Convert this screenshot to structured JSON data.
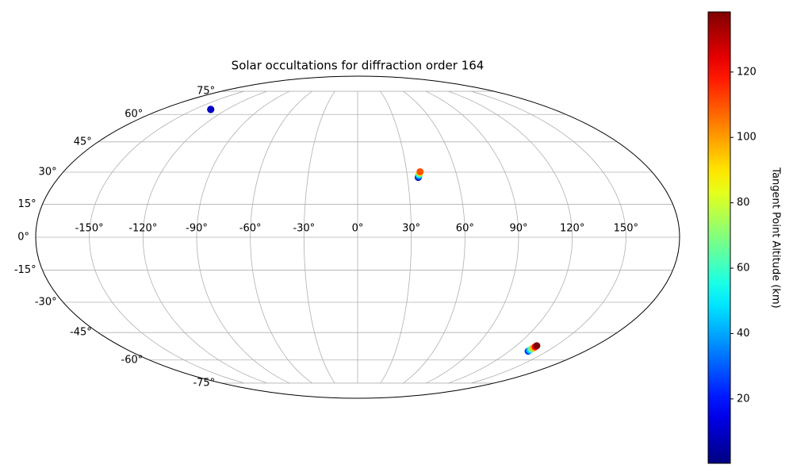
{
  "chart_data": {
    "type": "scatter",
    "projection": "mollweide",
    "title": "Solar occultations for diffraction order 164",
    "xlim": [
      -180,
      180
    ],
    "ylim": [
      -90,
      90
    ],
    "xticks": [
      {
        "value": -150,
        "label": "-150°"
      },
      {
        "value": -120,
        "label": "-120°"
      },
      {
        "value": -90,
        "label": "-90°"
      },
      {
        "value": -60,
        "label": "-60°"
      },
      {
        "value": -30,
        "label": "-30°"
      },
      {
        "value": 0,
        "label": "0°"
      },
      {
        "value": 30,
        "label": "30°"
      },
      {
        "value": 60,
        "label": "60°"
      },
      {
        "value": 90,
        "label": "90°"
      },
      {
        "value": 120,
        "label": "120°"
      },
      {
        "value": 150,
        "label": "150°"
      }
    ],
    "yticks": [
      {
        "value": -75,
        "label": "-75°"
      },
      {
        "value": -60,
        "label": "-60°"
      },
      {
        "value": -45,
        "label": "-45°"
      },
      {
        "value": -30,
        "label": "-30°"
      },
      {
        "value": -15,
        "label": "-15°"
      },
      {
        "value": 0,
        "label": "0°"
      },
      {
        "value": 15,
        "label": "15°"
      },
      {
        "value": 30,
        "label": "30°"
      },
      {
        "value": 45,
        "label": "45°"
      },
      {
        "value": 60,
        "label": "60°"
      },
      {
        "value": 75,
        "label": "75°"
      }
    ],
    "grid": true,
    "x": [
      -135,
      -135,
      -135,
      36.5,
      36.8,
      37.3,
      37.8,
      38.2,
      135,
      135,
      135,
      135.3,
      135.5,
      135.6
    ],
    "y": [
      63,
      63,
      63,
      27.5,
      28.0,
      28.8,
      29.6,
      30.2,
      -55,
      -54.4,
      -53.8,
      -53.2,
      -52.6,
      -52
    ],
    "c": [
      2,
      5,
      10,
      5,
      30,
      55,
      90,
      110,
      25,
      45,
      65,
      95,
      120,
      138
    ],
    "colorbar": {
      "label": "Tangent Point Altitude (km)",
      "colormap": "jet",
      "clim": [
        0.3,
        138.4
      ],
      "ticks": [
        20,
        40,
        60,
        80,
        100,
        120
      ]
    }
  }
}
